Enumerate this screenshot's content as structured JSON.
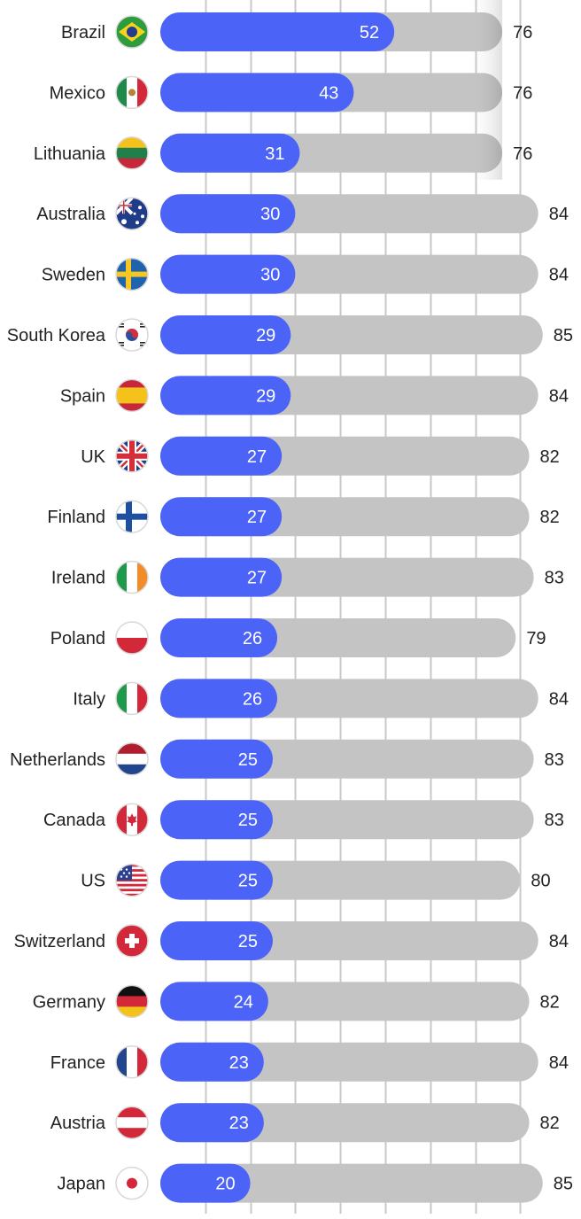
{
  "chart_data": {
    "type": "bar",
    "categories": [
      "Brazil",
      "Mexico",
      "Lithuania",
      "Australia",
      "Sweden",
      "South Korea",
      "Spain",
      "UK",
      "Finland",
      "Ireland",
      "Poland",
      "Italy",
      "Netherlands",
      "Canada",
      "US",
      "Switzerland",
      "Germany",
      "France",
      "Austria",
      "Japan"
    ],
    "series": [
      {
        "values": [
          52,
          43,
          31,
          30,
          30,
          29,
          29,
          27,
          27,
          27,
          26,
          26,
          25,
          25,
          25,
          25,
          24,
          23,
          23,
          20
        ]
      },
      {
        "values": [
          76,
          76,
          76,
          84,
          84,
          85,
          84,
          82,
          82,
          83,
          79,
          84,
          83,
          83,
          80,
          84,
          82,
          84,
          82,
          85
        ]
      }
    ],
    "flag_icons": [
      "brazil-flag-icon",
      "mexico-flag-icon",
      "lithuania-flag-icon",
      "australia-flag-icon",
      "sweden-flag-icon",
      "south-korea-flag-icon",
      "spain-flag-icon",
      "uk-flag-icon",
      "finland-flag-icon",
      "ireland-flag-icon",
      "poland-flag-icon",
      "italy-flag-icon",
      "netherlands-flag-icon",
      "canada-flag-icon",
      "us-flag-icon",
      "switzerland-flag-icon",
      "germany-flag-icon",
      "france-flag-icon",
      "austria-flag-icon",
      "japan-flag-icon"
    ],
    "grid": true,
    "legend": "none",
    "colors": {
      "primary_bar": "#4b63f7",
      "total_bar": "#c4c4c4",
      "grid": "#c8c8c8",
      "text": "#222222",
      "value_text": "#ffffff"
    }
  }
}
